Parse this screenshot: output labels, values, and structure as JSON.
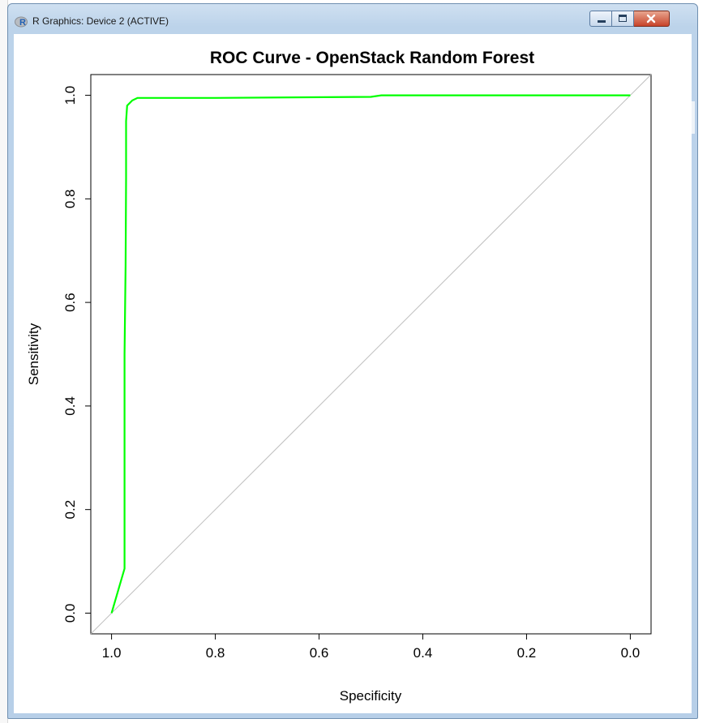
{
  "window": {
    "title": "R Graphics: Device 2 (ACTIVE)",
    "icon": "r-logo-icon",
    "buttons": [
      "minimize-icon",
      "maximize-icon",
      "close-icon"
    ]
  },
  "chart_data": {
    "type": "line",
    "title": "ROC Curve - OpenStack Random Forest",
    "xlabel": "Specificity",
    "ylabel": "Sensitivity",
    "xlim": [
      1.04,
      -0.04
    ],
    "ylim": [
      -0.04,
      1.04
    ],
    "x_reversed": true,
    "grid": false,
    "x_ticks": [
      "1.0",
      "0.8",
      "0.6",
      "0.4",
      "0.2",
      "0.0"
    ],
    "y_ticks": [
      "0.0",
      "0.2",
      "0.4",
      "0.6",
      "0.8",
      "1.0"
    ],
    "reference_line": {
      "from": [
        1,
        0
      ],
      "to": [
        0,
        1
      ],
      "color": "#bfbfbf"
    },
    "series": [
      {
        "color": "#00ff00",
        "specificity": [
          1.0,
          0.975,
          0.975,
          0.973,
          0.972,
          0.972,
          0.97,
          0.96,
          0.95,
          0.8,
          0.5,
          0.48,
          0.3,
          0.0
        ],
        "sensitivity": [
          0.0,
          0.086,
          0.5,
          0.67,
          0.84,
          0.95,
          0.98,
          0.99,
          0.995,
          0.995,
          0.997,
          1.0,
          1.0,
          1.0
        ]
      }
    ]
  }
}
